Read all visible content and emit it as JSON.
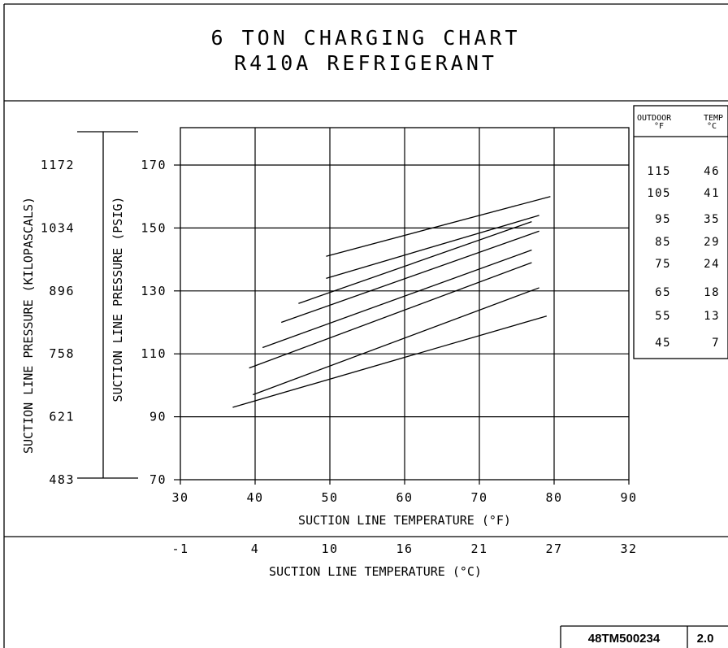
{
  "title_line1": "6 TON CHARGING CHART",
  "title_line2": "R410A REFRIGERANT",
  "doc_number": "48TM500234",
  "doc_revision": "2.0",
  "colors": {
    "ink": "#000000",
    "paper": "#ffffff"
  },
  "chart_data": {
    "type": "line",
    "title": "6 TON CHARGING CHART",
    "subtitle": "R410A REFRIGERANT",
    "xlabel": "SUCTION LINE TEMPERATURE (°F)",
    "xlabel_secondary": "SUCTION LINE TEMPERATURE (°C)",
    "ylabel": "SUCTION LINE PRESSURE (PSIG)",
    "ylabel_secondary": "SUCTION LINE PRESSURE (KILOPASCALS)",
    "xlim": [
      30,
      90
    ],
    "ylim": [
      70,
      180
    ],
    "x_ticks": [
      "30",
      "40",
      "50",
      "60",
      "70",
      "80",
      "90"
    ],
    "x_ticks_c": [
      {
        "f": 30,
        "label": "-1"
      },
      {
        "f": 40,
        "label": "4"
      },
      {
        "f": 50,
        "label": "10"
      },
      {
        "f": 60,
        "label": "16"
      },
      {
        "f": 70,
        "label": "21"
      },
      {
        "f": 80,
        "label": "27"
      },
      {
        "f": 90,
        "label": "32"
      }
    ],
    "y_ticks": [
      "70",
      "90",
      "110",
      "130",
      "150",
      "170"
    ],
    "y_ticks_kpa": [
      {
        "psig": 70,
        "label": "483"
      },
      {
        "psig": 90,
        "label": "621"
      },
      {
        "psig": 110,
        "label": "758"
      },
      {
        "psig": 130,
        "label": "896"
      },
      {
        "psig": 150,
        "label": "1034"
      },
      {
        "psig": 170,
        "label": "1172"
      }
    ],
    "grid": true,
    "legend": {
      "placement": "right",
      "header_outdoor": "OUTDOOR",
      "header_temp": "TEMP",
      "header_f": "°F",
      "header_c": "°C",
      "rows": [
        {
          "f": "115",
          "c": "46"
        },
        {
          "f": "105",
          "c": "41"
        },
        {
          "f": "95",
          "c": "35"
        },
        {
          "f": "85",
          "c": "29"
        },
        {
          "f": "75",
          "c": "24"
        },
        {
          "f": "65",
          "c": "18"
        },
        {
          "f": "55",
          "c": "13"
        },
        {
          "f": "45",
          "c": "7"
        }
      ]
    },
    "series": [
      {
        "points": [
          [
            49.5,
            141
          ],
          [
            79.5,
            160
          ]
        ]
      },
      {
        "points": [
          [
            49.5,
            134
          ],
          [
            78,
            154
          ]
        ]
      },
      {
        "points": [
          [
            45.8,
            126
          ],
          [
            77,
            152
          ]
        ]
      },
      {
        "points": [
          [
            43.5,
            120
          ],
          [
            78,
            149
          ]
        ]
      },
      {
        "points": [
          [
            41,
            112
          ],
          [
            77,
            143
          ]
        ]
      },
      {
        "points": [
          [
            39.2,
            105.5
          ],
          [
            77,
            139
          ]
        ]
      },
      {
        "points": [
          [
            39.7,
            97
          ],
          [
            78,
            131
          ]
        ]
      },
      {
        "points": [
          [
            37,
            93
          ],
          [
            79,
            122
          ]
        ]
      }
    ]
  }
}
